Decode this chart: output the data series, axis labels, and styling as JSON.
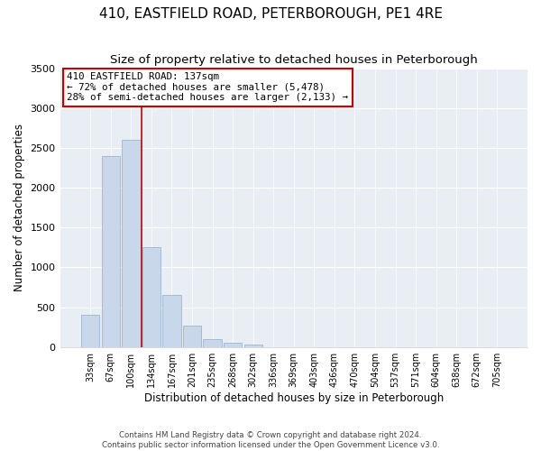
{
  "title": "410, EASTFIELD ROAD, PETERBOROUGH, PE1 4RE",
  "subtitle": "Size of property relative to detached houses in Peterborough",
  "xlabel": "Distribution of detached houses by size in Peterborough",
  "ylabel": "Number of detached properties",
  "bar_labels": [
    "33sqm",
    "67sqm",
    "100sqm",
    "134sqm",
    "167sqm",
    "201sqm",
    "235sqm",
    "268sqm",
    "302sqm",
    "336sqm",
    "369sqm",
    "403sqm",
    "436sqm",
    "470sqm",
    "504sqm",
    "537sqm",
    "571sqm",
    "604sqm",
    "638sqm",
    "672sqm",
    "705sqm"
  ],
  "bar_values": [
    400,
    2400,
    2600,
    1250,
    650,
    270,
    100,
    50,
    30,
    0,
    0,
    0,
    0,
    0,
    0,
    0,
    0,
    0,
    0,
    0,
    0
  ],
  "bar_color": "#c8d8ea",
  "bar_edge_color": "#9ab8d0",
  "vline_color": "#cc0000",
  "ylim": [
    0,
    3500
  ],
  "yticks": [
    0,
    500,
    1000,
    1500,
    2000,
    2500,
    3000,
    3500
  ],
  "annotation_title": "410 EASTFIELD ROAD: 137sqm",
  "annotation_line1": "← 72% of detached houses are smaller (5,478)",
  "annotation_line2": "28% of semi-detached houses are larger (2,133) →",
  "annotation_box_color": "#ffffff",
  "annotation_box_edge": "#cc0000",
  "footer1": "Contains HM Land Registry data © Crown copyright and database right 2024.",
  "footer2": "Contains public sector information licensed under the Open Government Licence v3.0.",
  "plot_bg_color": "#e8eef4",
  "title_fontsize": 11,
  "subtitle_fontsize": 9.5
}
